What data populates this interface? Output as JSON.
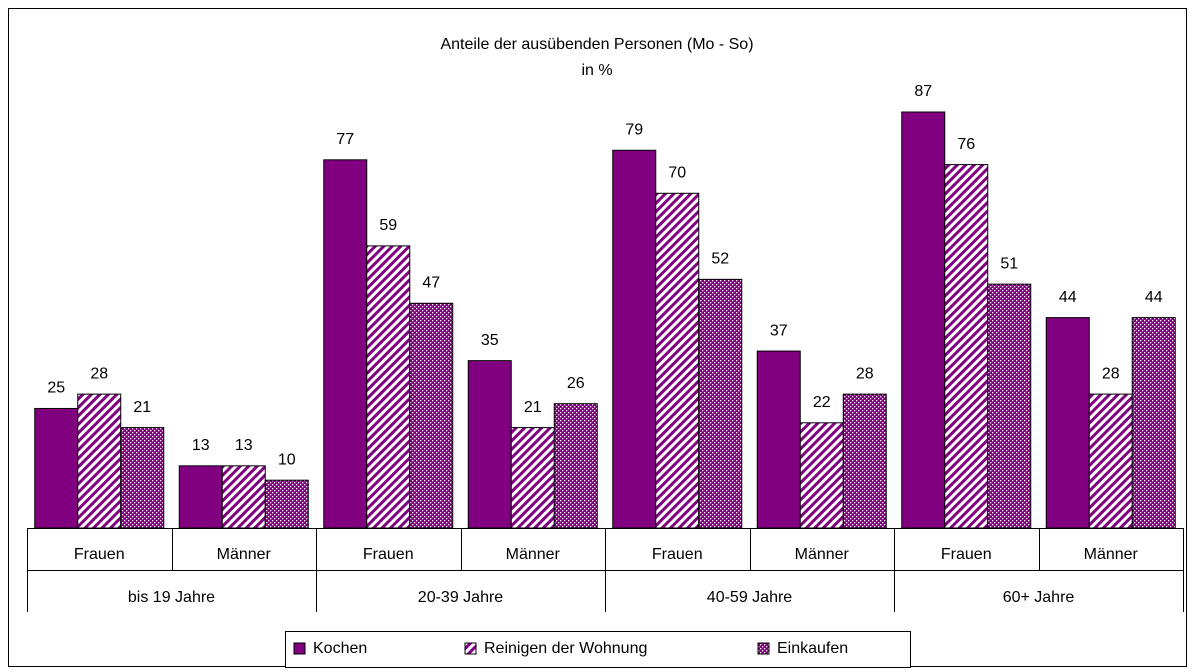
{
  "chart_data": {
    "type": "bar",
    "title": "Anteile der ausübenden Personen (Mo - So)",
    "subtitle": "in %",
    "categories": [
      "Frauen",
      "Männer",
      "Frauen",
      "Männer",
      "Frauen",
      "Männer",
      "Frauen",
      "Männer"
    ],
    "groups": [
      "bis 19 Jahre",
      "20-39 Jahre",
      "40-59 Jahre",
      "60+ Jahre"
    ],
    "series": [
      {
        "name": "Kochen",
        "color": "#800080",
        "pattern": "solid",
        "values": [
          25,
          13,
          77,
          35,
          79,
          37,
          87,
          44
        ]
      },
      {
        "name": "Reinigen der Wohnung",
        "color": "#800080",
        "pattern": "hatch",
        "values": [
          28,
          13,
          59,
          21,
          70,
          22,
          76,
          28
        ]
      },
      {
        "name": "Einkaufen",
        "color": "#800080",
        "pattern": "dots",
        "values": [
          21,
          10,
          47,
          26,
          52,
          28,
          51,
          44
        ]
      }
    ],
    "legend": "bottom"
  }
}
